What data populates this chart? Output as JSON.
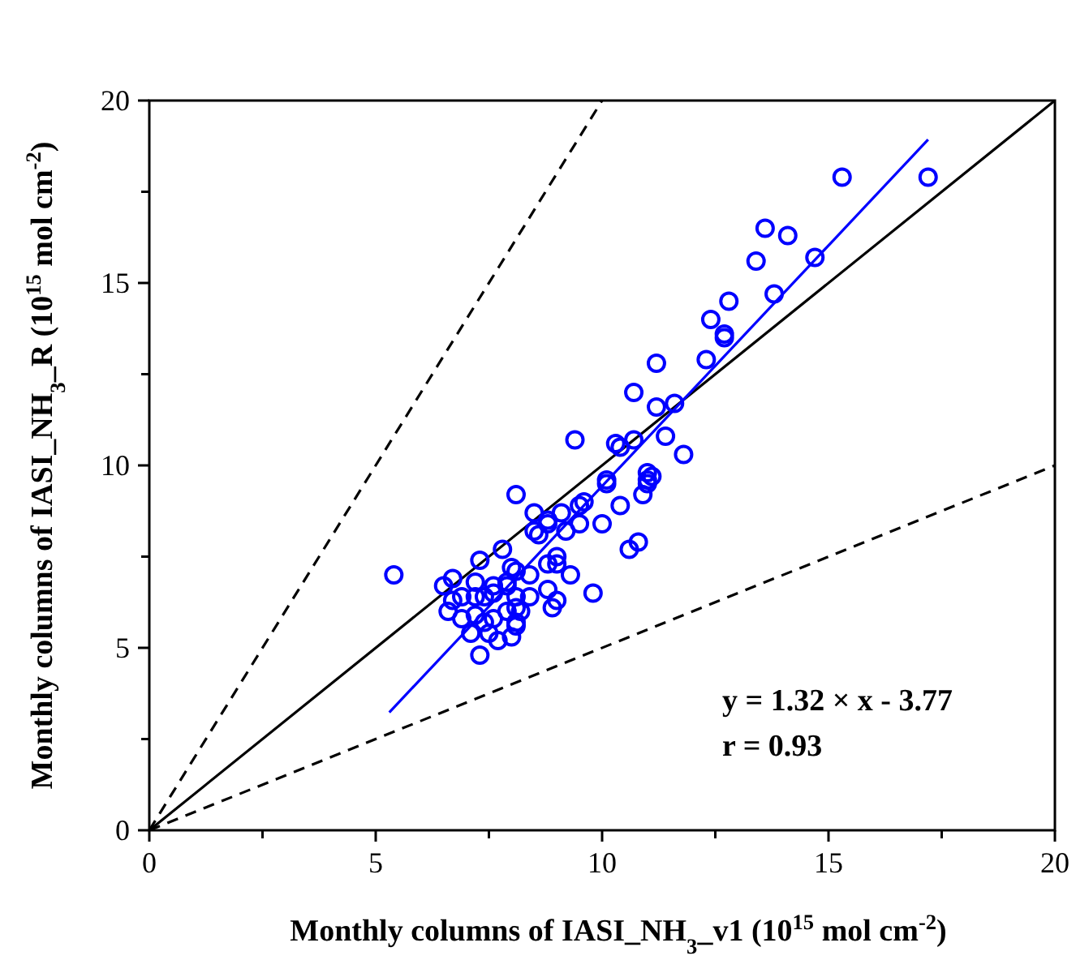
{
  "chart_data": {
    "type": "scatter",
    "xlabel": "Monthly columns of IASI_NH$_{3}$_v1 (10$^{15}$ mol cm$^{-2}$)",
    "ylabel": "Monthly columns of IASI_NH$_{3}$_R (10$^{15}$ mol cm$^{-2}$)",
    "xlim": [
      0,
      20
    ],
    "ylim": [
      0,
      20
    ],
    "xticks": [
      0,
      {
        "value": 2.5,
        "label": null
      },
      5,
      {
        "value": 7.5,
        "label": null
      },
      10,
      {
        "value": 12.5,
        "label": null
      },
      15,
      {
        "value": 17.5,
        "label": null
      },
      20
    ],
    "yticks": [
      0,
      {
        "value": 2.5,
        "label": null
      },
      5,
      {
        "value": 7.5,
        "label": null
      },
      10,
      {
        "value": 12.5,
        "label": null
      },
      15,
      {
        "value": 17.5,
        "label": null
      },
      20
    ],
    "grid": false,
    "annotations": [
      "y = 1.32 × x - 3.77",
      "r = 0.93"
    ],
    "series": [
      {
        "type": "line",
        "color": "#000000",
        "line_style": "solid",
        "marker": "none",
        "x": [
          0,
          20
        ],
        "values": [
          0,
          20
        ]
      },
      {
        "type": "line",
        "color": "#000000",
        "line_style": "dashed",
        "marker": "none",
        "x": [
          0,
          10
        ],
        "values": [
          0,
          20
        ]
      },
      {
        "type": "line",
        "color": "#000000",
        "line_style": "dashed",
        "marker": "none",
        "x": [
          0,
          20
        ],
        "values": [
          0,
          10
        ]
      },
      {
        "color": "#0000ff",
        "marker": "circle",
        "x": [
          13.6,
          14.1,
          13.4,
          14.7,
          13.8,
          12.8,
          12.4,
          12.7,
          12.7,
          12.3,
          11.2,
          10.7,
          11.2,
          11.6,
          9.4,
          10.3,
          10.4,
          10.7,
          11.4,
          11.8,
          11.0,
          11.0,
          10.1,
          5.4,
          17.2,
          15.3,
          8.1,
          8.5,
          8.8,
          9.1,
          9.5,
          9.6,
          10.1,
          10.4,
          10.9,
          11.0,
          11.1,
          10.0,
          9.5,
          9.2,
          8.8,
          8.5,
          8.6,
          10.6,
          10.8,
          7.8,
          7.3,
          6.7,
          6.5,
          7.2,
          7.6,
          7.9,
          8.0,
          8.1,
          8.4,
          8.8,
          9.0,
          9.0,
          9.3,
          8.8,
          8.9,
          9.0,
          9.8,
          8.4,
          8.1,
          7.9,
          6.7,
          6.6,
          6.9,
          7.2,
          7.4,
          7.6,
          6.9,
          7.2,
          7.4,
          7.6,
          7.9,
          8.1,
          8.2,
          8.1,
          8.1,
          7.1,
          7.5,
          7.7,
          8.0,
          7.3
        ],
        "values": [
          16.5,
          16.3,
          15.6,
          15.7,
          14.7,
          14.5,
          14.0,
          13.6,
          13.5,
          12.9,
          12.8,
          12.0,
          11.6,
          11.7,
          10.7,
          10.6,
          10.5,
          10.7,
          10.8,
          10.3,
          9.8,
          9.6,
          9.6,
          7.0,
          17.9,
          17.9,
          9.2,
          8.7,
          8.5,
          8.7,
          8.9,
          9.0,
          9.5,
          8.9,
          9.2,
          9.5,
          9.7,
          8.4,
          8.4,
          8.2,
          8.4,
          8.2,
          8.1,
          7.7,
          7.9,
          7.7,
          7.4,
          6.9,
          6.7,
          6.8,
          6.7,
          6.8,
          7.2,
          7.1,
          7.0,
          7.3,
          7.3,
          7.5,
          7.0,
          6.6,
          6.1,
          6.3,
          6.5,
          6.4,
          6.4,
          6.7,
          6.3,
          6.0,
          6.4,
          6.4,
          6.4,
          6.5,
          5.8,
          5.9,
          5.7,
          5.8,
          6.0,
          6.1,
          6.0,
          5.6,
          5.7,
          5.4,
          5.4,
          5.2,
          5.3,
          4.8
        ]
      },
      {
        "type": "line",
        "color": "#0000ff",
        "line_style": "solid",
        "marker": "none",
        "x": [
          5.3,
          17.2
        ],
        "values": [
          3.23,
          18.93
        ]
      }
    ]
  }
}
